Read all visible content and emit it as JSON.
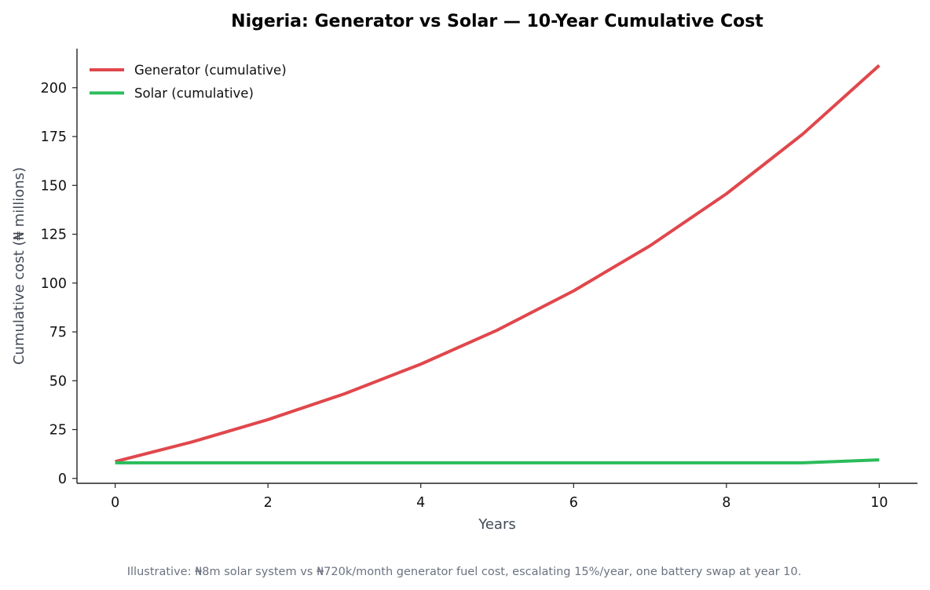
{
  "chart_data": {
    "type": "line",
    "title": "Nigeria: Generator vs Solar — 10-Year Cumulative Cost",
    "xlabel": "Years",
    "ylabel": "Cumulative cost (₦ millions)",
    "x": [
      0,
      1,
      2,
      3,
      4,
      5,
      6,
      7,
      8,
      9,
      10
    ],
    "xlim": [
      -0.5,
      10.5
    ],
    "ylim": [
      -2.5,
      220
    ],
    "x_ticks": [
      0,
      2,
      4,
      6,
      8,
      10
    ],
    "y_ticks": [
      0,
      25,
      50,
      75,
      100,
      125,
      150,
      175,
      200
    ],
    "grid": false,
    "legend_position": "top-left",
    "series": [
      {
        "name": "Generator (cumulative)",
        "color": "#e0474c",
        "values": [
          8.6,
          18.6,
          30.1,
          43.3,
          58.5,
          75.9,
          96.0,
          119.1,
          145.7,
          176.3,
          211.4
        ]
      },
      {
        "name": "Solar (cumulative)",
        "color": "#2bbc5c",
        "values": [
          8.0,
          8.0,
          8.0,
          8.0,
          8.0,
          8.0,
          8.0,
          8.0,
          8.0,
          8.0,
          9.5
        ]
      }
    ]
  },
  "caption": "Illustrative: ₦8m solar system vs ₦720k/month generator fuel cost, escalating 15%/year, one battery swap at year 10."
}
